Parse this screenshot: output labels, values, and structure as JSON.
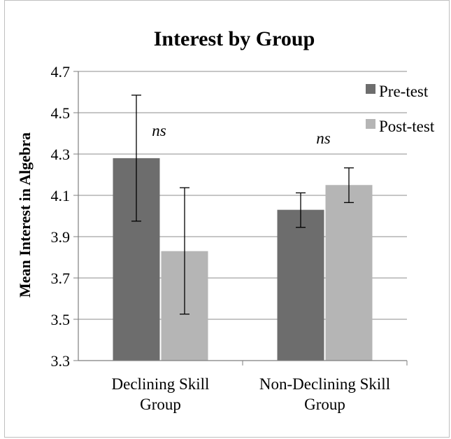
{
  "chart_data": {
    "type": "bar",
    "title": "Interest by Group",
    "xlabel": "",
    "ylabel": "Mean Interest in Algebra",
    "ylim": [
      3.3,
      4.7
    ],
    "yticks": [
      "4.7",
      "4.5",
      "4.3",
      "4.1",
      "3.9",
      "3.7",
      "3.5",
      "3.3"
    ],
    "categories": [
      [
        "Declining Skill",
        "Group"
      ],
      [
        "Non-Declining Skill",
        "Group"
      ]
    ],
    "series": [
      {
        "name": "Pre-test",
        "color": "#6d6d6d",
        "values": [
          4.28,
          4.03
        ],
        "error_low": [
          3.975,
          3.945
        ],
        "error_high": [
          4.585,
          4.112
        ]
      },
      {
        "name": "Post-test",
        "color": "#b5b5b5",
        "values": [
          3.83,
          4.15
        ],
        "error_low": [
          3.525,
          4.065
        ],
        "error_high": [
          4.137,
          4.233
        ]
      }
    ],
    "annotations": [
      "ns",
      "ns"
    ],
    "grid": true,
    "legend": "top-right"
  }
}
